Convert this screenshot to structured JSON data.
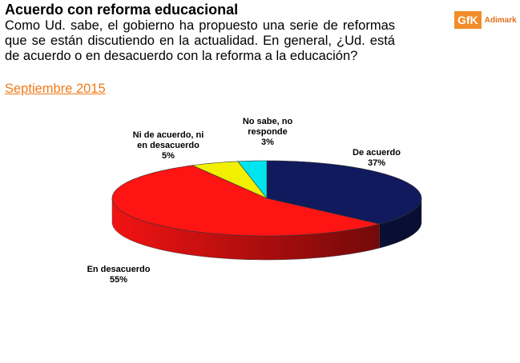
{
  "chart_data": {
    "type": "pie3d",
    "title": "Acuerdo con reforma educacional",
    "subtitle": "Como Ud. sabe, el gobierno ha propuesto una serie de reformas que se están discutiendo en la actualidad. En general, ¿Ud. está de acuerdo o en desacuerdo con la reforma a la educación?",
    "date": "Septiembre 2015",
    "categories": [
      "De acuerdo",
      "En desacuerdo",
      "Ni de acuerdo, ni en desacuerdo",
      "No sabe, no responde"
    ],
    "values": [
      37,
      55,
      5,
      3
    ],
    "value_labels": [
      "37%",
      "55%",
      "5%",
      "3%"
    ],
    "colors": [
      "#111a5c",
      "#ff1414",
      "#f0f000",
      "#00e4ef"
    ]
  },
  "logo": {
    "brand": "GfK",
    "name": "Adimark"
  }
}
